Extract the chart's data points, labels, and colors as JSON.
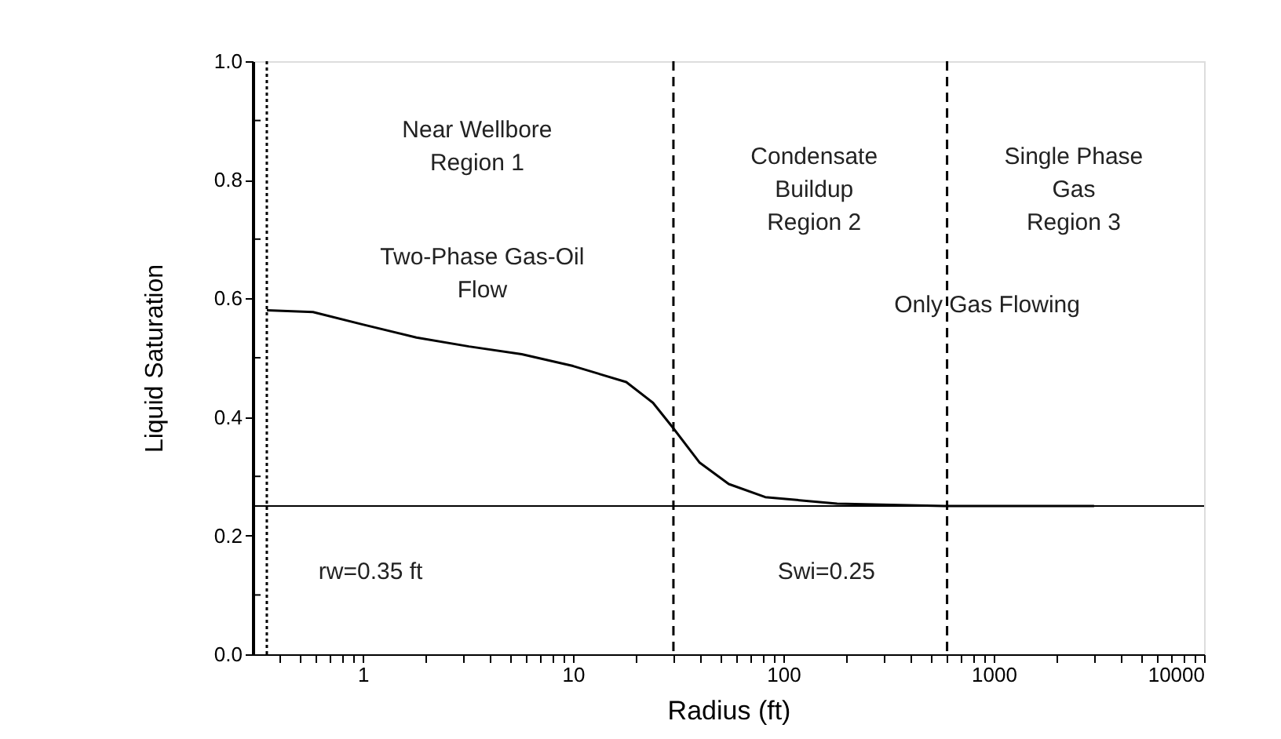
{
  "chart_data": {
    "type": "line",
    "xlabel": "Radius (ft)",
    "ylabel": "Liquid Saturation",
    "log": "x",
    "grid": false,
    "marker": "none",
    "line_style": "solid",
    "x": [
      0.35,
      0.58,
      1.0,
      1.8,
      3.2,
      5.7,
      10,
      17.9,
      24,
      30,
      40,
      55,
      82,
      180,
      580,
      3000
    ],
    "series": [
      {
        "color": "#000000",
        "values": [
          0.58,
          0.577,
          0.556,
          0.534,
          0.519,
          0.506,
          0.486,
          0.459,
          0.424,
          0.381,
          0.323,
          0.287,
          0.265,
          0.254,
          0.25,
          0.25
        ]
      }
    ],
    "xlim": [
      0.3,
      10000
    ],
    "xticks": [
      {
        "value": 0.4,
        "label": null
      },
      {
        "value": 0.5,
        "label": null
      },
      {
        "value": 0.6,
        "label": null
      },
      {
        "value": 0.7,
        "label": null
      },
      {
        "value": 0.8,
        "label": null
      },
      {
        "value": 0.9,
        "label": null
      },
      1,
      {
        "value": 2,
        "label": null
      },
      {
        "value": 3,
        "label": null
      },
      {
        "value": 4,
        "label": null
      },
      {
        "value": 5,
        "label": null
      },
      {
        "value": 6,
        "label": null
      },
      {
        "value": 7,
        "label": null
      },
      {
        "value": 8,
        "label": null
      },
      {
        "value": 9,
        "label": null
      },
      10,
      {
        "value": 20,
        "label": null
      },
      {
        "value": 30,
        "label": null
      },
      {
        "value": 40,
        "label": null
      },
      {
        "value": 50,
        "label": null
      },
      {
        "value": 60,
        "label": null
      },
      {
        "value": 70,
        "label": null
      },
      {
        "value": 80,
        "label": null
      },
      {
        "value": 90,
        "label": null
      },
      100,
      {
        "value": 200,
        "label": null
      },
      {
        "value": 300,
        "label": null
      },
      {
        "value": 400,
        "label": null
      },
      {
        "value": 500,
        "label": null
      },
      {
        "value": 600,
        "label": null
      },
      {
        "value": 700,
        "label": null
      },
      {
        "value": 800,
        "label": null
      },
      {
        "value": 900,
        "label": null
      },
      1000,
      {
        "value": 2000,
        "label": null
      },
      {
        "value": 3000,
        "label": null
      },
      {
        "value": 4000,
        "label": null
      },
      {
        "value": 5000,
        "label": null
      },
      {
        "value": 6000,
        "label": null
      },
      {
        "value": 7000,
        "label": null
      },
      {
        "value": 8000,
        "label": null
      },
      {
        "value": 9000,
        "label": null
      },
      10000
    ],
    "ylim": [
      0,
      1
    ],
    "yticks": [
      {
        "value": 0,
        "label": "0.0"
      },
      {
        "value": 0.1,
        "label": null
      },
      {
        "value": 0.2,
        "label": "0.2"
      },
      {
        "value": 0.3,
        "label": null
      },
      {
        "value": 0.4,
        "label": "0.4"
      },
      {
        "value": 0.5,
        "label": null
      },
      {
        "value": 0.6,
        "label": "0.6"
      },
      {
        "value": 0.7,
        "label": null
      },
      {
        "value": 0.8,
        "label": "0.8"
      },
      {
        "value": 0.9,
        "label": null
      },
      {
        "value": 1,
        "label": "1.0"
      }
    ],
    "ref_lines": [
      {
        "axis": "x",
        "value": 0.35,
        "line_style": "dotted",
        "color": "#000000"
      },
      {
        "axis": "x",
        "value": 30,
        "line_style": "dashed",
        "color": "#000000"
      },
      {
        "axis": "x",
        "value": 600,
        "line_style": "dashed",
        "color": "#000000"
      },
      {
        "axis": "y",
        "value": 0.25,
        "line_style": "solid",
        "color": "#000000"
      }
    ],
    "annotations": [
      "Near Wellbore\nRegion 1",
      "Two-Phase Gas-Oil\nFlow",
      "Condensate\nBuildup\nRegion 2",
      "Single Phase\nGas\nRegion 3",
      "Only Gas Flowing",
      "rw=0.35 ft",
      "Swi=0.25"
    ]
  }
}
